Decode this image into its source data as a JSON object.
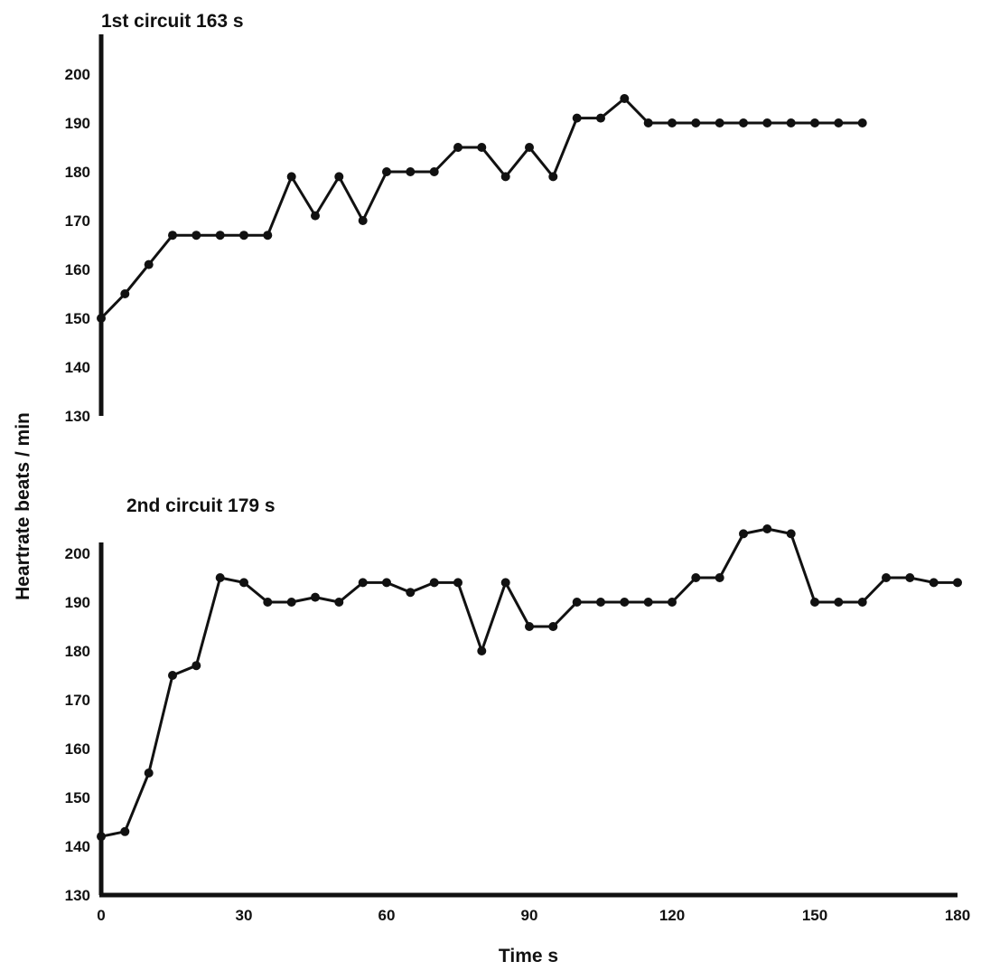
{
  "chart_data": {
    "type": "line",
    "xlabel": "Time  s",
    "ylabel": "Heartrate     beats / min",
    "ylim": [
      130,
      205
    ],
    "xlim": [
      0,
      180
    ],
    "x_ticks": [
      "0",
      "30",
      "60",
      "90",
      "120",
      "150",
      "180"
    ],
    "y_ticks": [
      "130",
      "140",
      "150",
      "160",
      "170",
      "180",
      "190",
      "200"
    ],
    "grid": false,
    "panels": [
      {
        "title": "1st circuit  163  s",
        "series": [
          {
            "x": [
              0,
              5,
              10,
              15,
              20,
              25,
              30,
              35,
              40,
              45,
              50,
              55,
              60,
              65,
              70,
              75,
              80,
              85,
              90,
              95,
              100,
              105,
              110,
              115,
              120,
              125,
              130,
              135,
              140,
              145,
              150,
              155,
              160
            ],
            "y": [
              150,
              155,
              161,
              167,
              167,
              167,
              167,
              167,
              179,
              171,
              179,
              170,
              180,
              180,
              180,
              185,
              185,
              179,
              185,
              179,
              191,
              191,
              195,
              190,
              190,
              190,
              190,
              190,
              190,
              190,
              190,
              190,
              190
            ]
          }
        ]
      },
      {
        "title": "2nd circuit  179  s",
        "series": [
          {
            "x": [
              0,
              5,
              10,
              15,
              20,
              25,
              30,
              35,
              40,
              45,
              50,
              55,
              60,
              65,
              70,
              75,
              80,
              85,
              90,
              95,
              100,
              105,
              110,
              115,
              120,
              125,
              130,
              135,
              140,
              145,
              150,
              155,
              160,
              165,
              170,
              175,
              180
            ],
            "y": [
              142,
              143,
              155,
              175,
              177,
              195,
              194,
              190,
              190,
              191,
              190,
              194,
              194,
              192,
              194,
              194,
              180,
              194,
              185,
              185,
              190,
              190,
              190,
              190,
              190,
              195,
              195,
              204,
              205,
              204,
              190,
              190,
              190,
              195,
              195,
              194,
              194
            ]
          }
        ]
      }
    ]
  }
}
